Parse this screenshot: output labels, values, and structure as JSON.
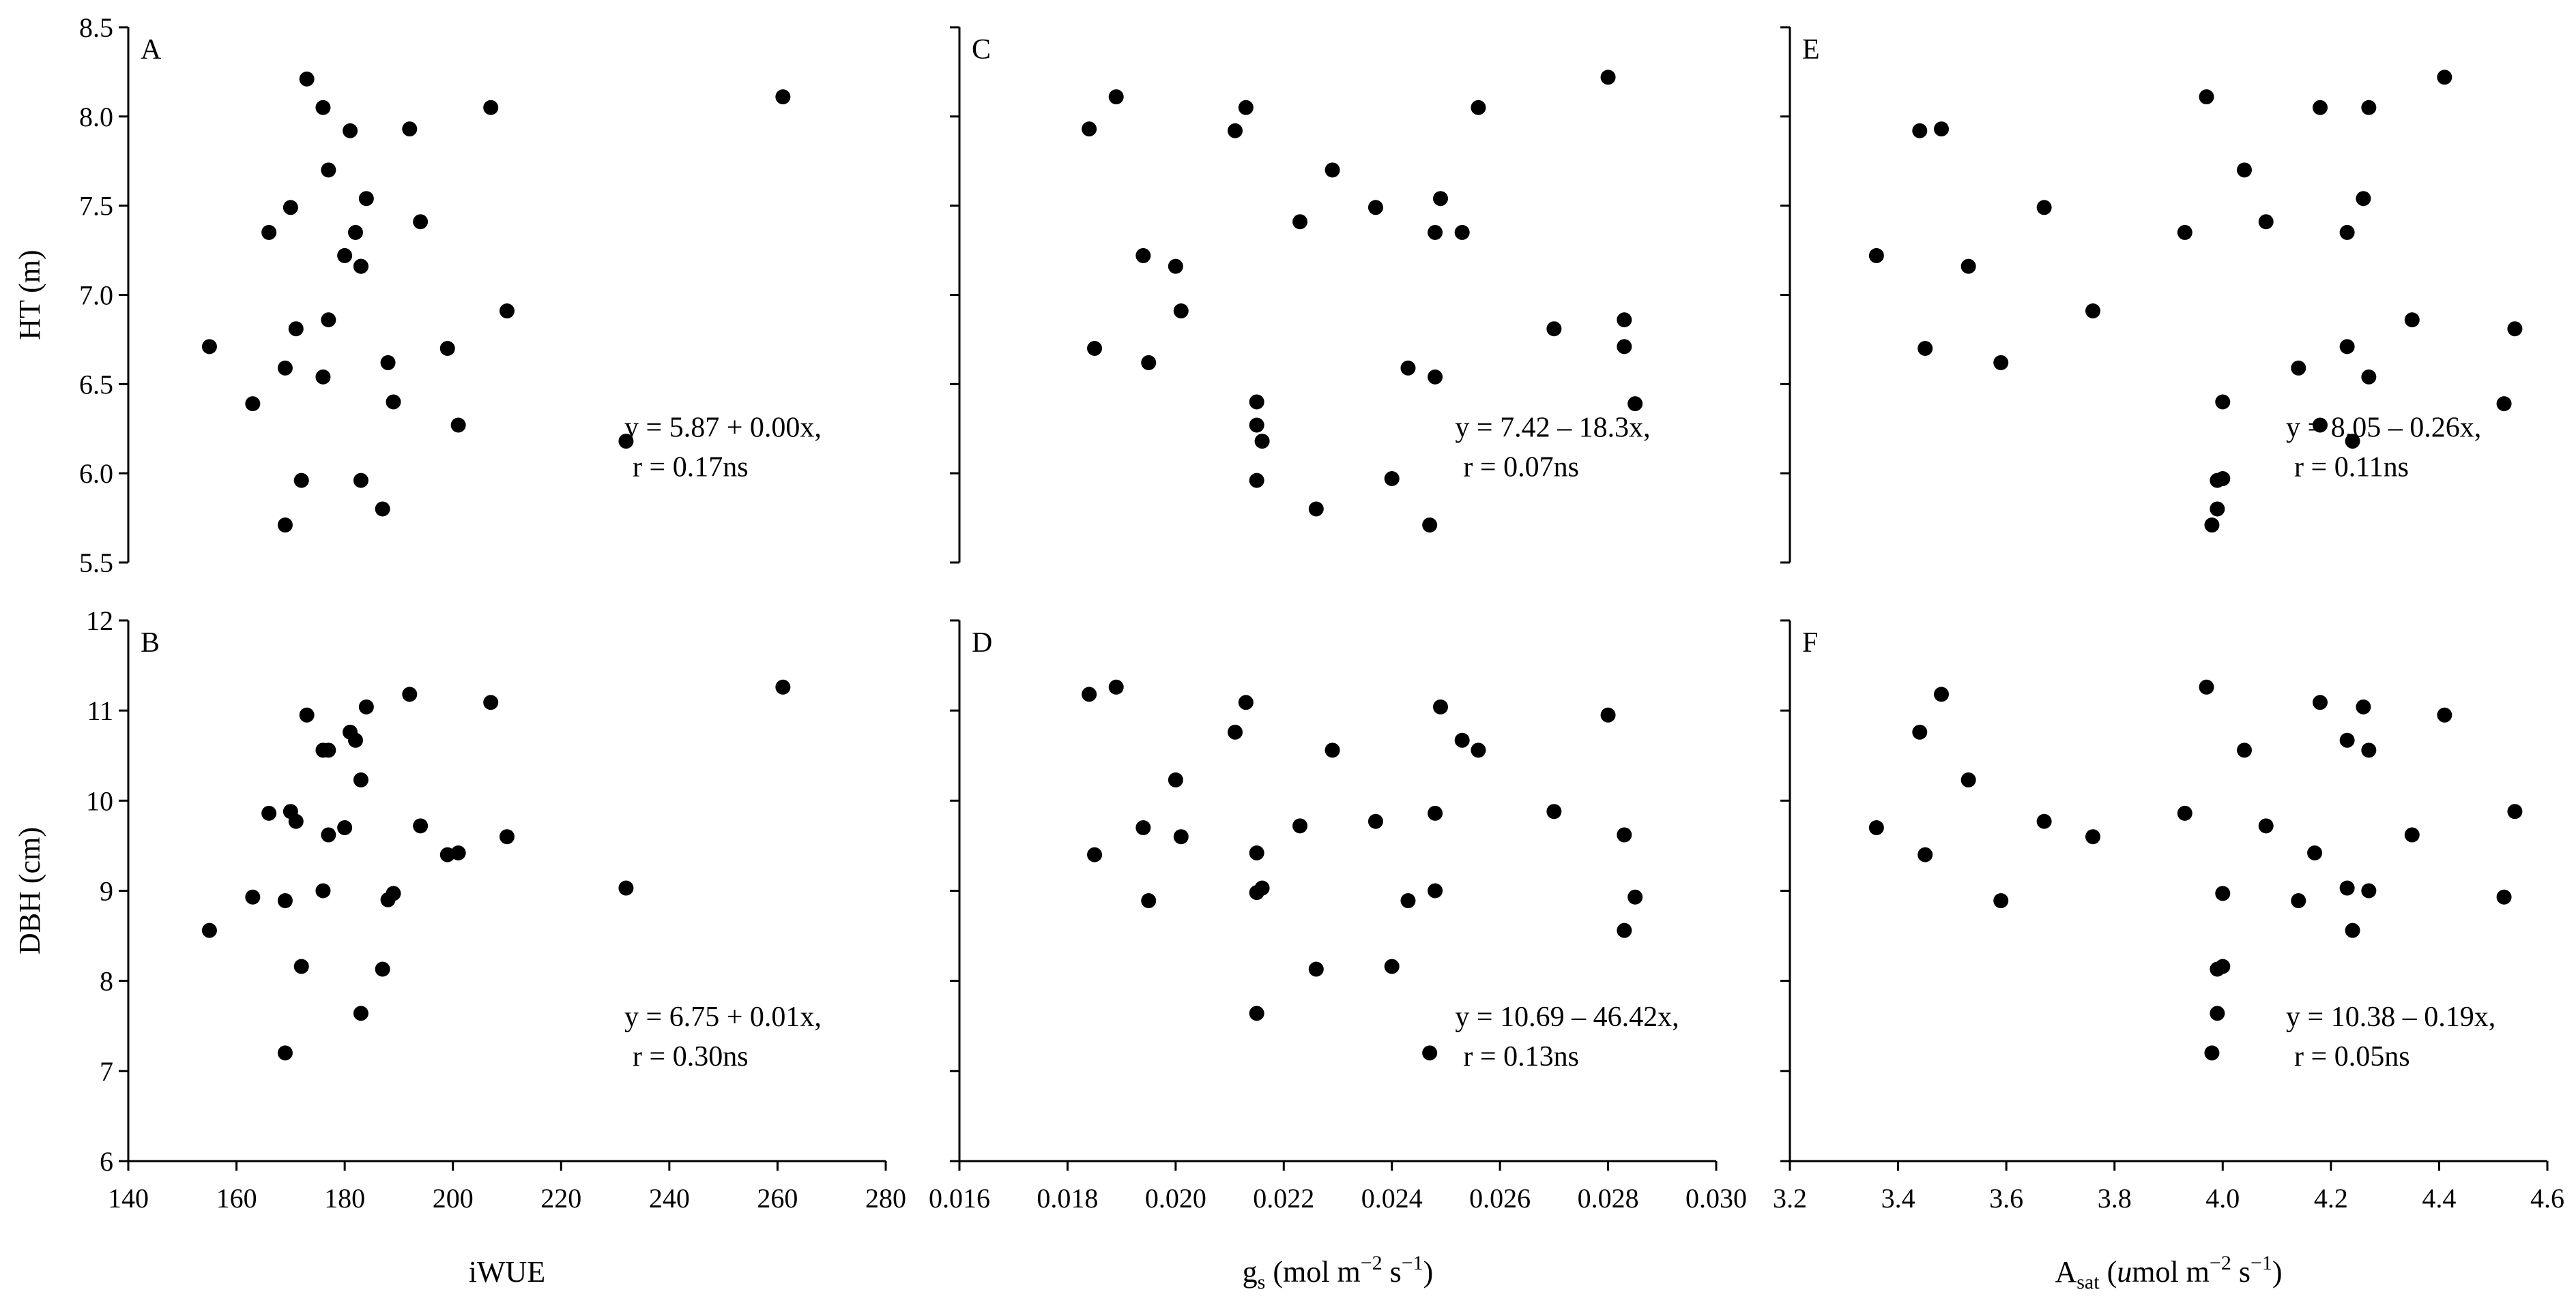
{
  "chart_data": [
    {
      "panel": "A",
      "type": "scatter",
      "xlabel": "",
      "ylabel": "HT (m)",
      "xlim": [
        140,
        280
      ],
      "ylim": [
        5.5,
        8.5
      ],
      "xticks": [
        "140",
        "160",
        "180",
        "200",
        "220",
        "240",
        "260",
        "280"
      ],
      "yticks": [
        "5.5",
        "6.0",
        "6.5",
        "7.0",
        "7.5",
        "8.0",
        "8.5"
      ],
      "annotation": [
        "y = 5.87 + 0.00x,",
        "r = 0.17ns"
      ],
      "x": [
        155,
        163,
        166,
        169,
        169,
        170,
        171,
        172,
        173,
        176,
        176,
        177,
        177,
        180,
        181,
        182,
        183,
        183,
        183,
        184,
        187,
        188,
        189,
        192,
        194,
        199,
        201,
        207,
        210,
        232,
        261
      ],
      "y": [
        6.71,
        6.39,
        7.35,
        6.59,
        5.71,
        7.49,
        6.81,
        5.96,
        8.21,
        8.05,
        6.54,
        7.7,
        6.86,
        7.22,
        7.92,
        7.35,
        7.16,
        5.96,
        7.16,
        7.54,
        5.8,
        6.62,
        6.4,
        7.93,
        7.41,
        6.7,
        6.27,
        8.05,
        6.91,
        6.18,
        8.11
      ]
    },
    {
      "panel": "B",
      "type": "scatter",
      "xlabel": "iWUE",
      "ylabel": "DBH (cm)",
      "xlim": [
        140,
        280
      ],
      "ylim": [
        6,
        12
      ],
      "xticks": [
        "140",
        "160",
        "180",
        "200",
        "220",
        "240",
        "260",
        "280"
      ],
      "yticks": [
        "6",
        "7",
        "8",
        "9",
        "10",
        "11",
        "12"
      ],
      "annotation": [
        "y = 6.75 + 0.01x,",
        "r = 0.30ns"
      ],
      "x": [
        155,
        163,
        166,
        169,
        169,
        170,
        171,
        172,
        173,
        176,
        176,
        177,
        177,
        180,
        181,
        182,
        183,
        183,
        184,
        187,
        188,
        189,
        192,
        194,
        199,
        201,
        207,
        210,
        232,
        261
      ],
      "y": [
        8.56,
        8.93,
        9.86,
        8.89,
        7.2,
        9.88,
        9.77,
        8.16,
        10.95,
        10.56,
        9.0,
        9.62,
        10.56,
        9.7,
        10.76,
        10.67,
        10.23,
        7.64,
        11.04,
        8.13,
        8.9,
        8.97,
        11.18,
        9.72,
        9.4,
        9.42,
        11.09,
        9.6,
        9.03,
        11.26
      ]
    },
    {
      "panel": "C",
      "type": "scatter",
      "xlabel": "",
      "ylabel": "",
      "xlim": [
        0.016,
        0.03
      ],
      "ylim": [
        5.5,
        8.5
      ],
      "xticks": [
        "0.016",
        "0.018",
        "0.020",
        "0.022",
        "0.024",
        "0.026",
        "0.028",
        "0.030"
      ],
      "yticks": [
        "5.5",
        "6.0",
        "6.5",
        "7.0",
        "7.5",
        "8.0",
        "8.5"
      ],
      "annotation": [
        "y = 7.42 – 18.3x,",
        "r = 0.07ns"
      ],
      "x": [
        0.0184,
        0.0189,
        0.0185,
        0.0194,
        0.0195,
        0.02,
        0.0201,
        0.0211,
        0.0213,
        0.0215,
        0.0215,
        0.0216,
        0.0215,
        0.0223,
        0.0226,
        0.0229,
        0.0237,
        0.024,
        0.0243,
        0.0247,
        0.0248,
        0.0248,
        0.0249,
        0.0253,
        0.0256,
        0.027,
        0.028,
        0.0283,
        0.0283,
        0.0285
      ],
      "y": [
        7.93,
        8.11,
        6.7,
        7.22,
        6.62,
        7.16,
        6.91,
        7.92,
        8.05,
        6.4,
        6.27,
        6.18,
        5.96,
        7.41,
        5.8,
        7.7,
        7.49,
        5.97,
        6.59,
        5.71,
        6.54,
        7.35,
        7.54,
        7.35,
        8.05,
        6.81,
        8.22,
        6.86,
        6.71,
        6.39
      ]
    },
    {
      "panel": "D",
      "type": "scatter",
      "xlabel": "gₛ (mol m⁻² s⁻¹)",
      "ylabel": "",
      "xlim": [
        0.016,
        0.03
      ],
      "ylim": [
        6,
        12
      ],
      "xticks": [
        "0.016",
        "0.018",
        "0.020",
        "0.022",
        "0.024",
        "0.026",
        "0.028",
        "0.030"
      ],
      "yticks": [
        "6",
        "7",
        "8",
        "9",
        "10",
        "11",
        "12"
      ],
      "annotation": [
        "y = 10.69 – 46.42x,",
        "r = 0.13ns"
      ],
      "x": [
        0.0184,
        0.0189,
        0.0185,
        0.0194,
        0.0195,
        0.02,
        0.0201,
        0.0211,
        0.0213,
        0.0215,
        0.0215,
        0.0216,
        0.0215,
        0.0223,
        0.0226,
        0.0229,
        0.0237,
        0.024,
        0.0243,
        0.0247,
        0.0248,
        0.0248,
        0.0249,
        0.0253,
        0.0256,
        0.027,
        0.028,
        0.0283,
        0.0283,
        0.0285
      ],
      "y": [
        11.18,
        11.26,
        9.4,
        9.7,
        8.89,
        10.23,
        9.6,
        10.76,
        11.09,
        8.98,
        9.42,
        9.03,
        7.64,
        9.72,
        8.13,
        10.56,
        9.77,
        8.16,
        8.89,
        7.2,
        9.0,
        9.86,
        11.04,
        10.67,
        10.56,
        9.88,
        10.95,
        9.62,
        8.56,
        8.93
      ]
    },
    {
      "panel": "E",
      "type": "scatter",
      "xlabel": "",
      "ylabel": "",
      "xlim": [
        3.2,
        4.6
      ],
      "ylim": [
        5.5,
        8.5
      ],
      "xticks": [
        "3.2",
        "3.4",
        "3.6",
        "3.8",
        "4.0",
        "4.2",
        "4.4",
        "4.6"
      ],
      "yticks": [
        "5.5",
        "6.0",
        "6.5",
        "7.0",
        "7.5",
        "8.0",
        "8.5"
      ],
      "annotation": [
        "y = 8.05 – 0.26x,",
        "r = 0.11ns"
      ],
      "x": [
        3.36,
        3.44,
        3.45,
        3.48,
        3.53,
        3.59,
        3.67,
        3.76,
        3.93,
        3.97,
        3.98,
        3.99,
        3.99,
        4.0,
        4.0,
        4.04,
        4.08,
        4.14,
        4.18,
        4.18,
        4.23,
        4.23,
        4.24,
        4.26,
        4.27,
        4.27,
        4.35,
        4.41,
        4.52,
        4.54
      ],
      "y": [
        7.22,
        7.92,
        6.7,
        7.93,
        7.16,
        6.62,
        7.49,
        6.91,
        7.35,
        8.11,
        5.71,
        5.8,
        5.96,
        5.97,
        6.4,
        7.7,
        7.41,
        6.59,
        8.05,
        6.27,
        7.35,
        6.71,
        6.18,
        7.54,
        6.54,
        8.05,
        6.86,
        8.22,
        6.39,
        6.81
      ]
    },
    {
      "panel": "F",
      "type": "scatter",
      "xlabel": "Aₛₐₜ (umol m⁻² s⁻¹)",
      "ylabel": "",
      "xlim": [
        3.2,
        4.6
      ],
      "ylim": [
        6,
        12
      ],
      "xticks": [
        "3.2",
        "3.4",
        "3.6",
        "3.8",
        "4.0",
        "4.2",
        "4.4",
        "4.6"
      ],
      "yticks": [
        "6",
        "7",
        "8",
        "9",
        "10",
        "11",
        "12"
      ],
      "annotation": [
        "y = 10.38 – 0.19x,",
        "r = 0.05ns"
      ],
      "x": [
        3.36,
        3.44,
        3.45,
        3.48,
        3.53,
        3.59,
        3.67,
        3.76,
        3.93,
        3.97,
        3.98,
        3.99,
        3.99,
        4.0,
        4.0,
        4.04,
        4.08,
        4.14,
        4.17,
        4.18,
        4.23,
        4.23,
        4.24,
        4.26,
        4.27,
        4.27,
        4.35,
        4.41,
        4.52,
        4.54
      ],
      "y": [
        9.7,
        10.76,
        9.4,
        11.18,
        10.23,
        8.89,
        9.77,
        9.6,
        9.86,
        11.26,
        7.2,
        7.64,
        8.13,
        8.16,
        8.97,
        10.56,
        9.72,
        8.89,
        9.42,
        11.09,
        10.67,
        9.03,
        8.56,
        11.04,
        9.0,
        10.56,
        9.62,
        10.95,
        8.93,
        9.88
      ]
    }
  ]
}
